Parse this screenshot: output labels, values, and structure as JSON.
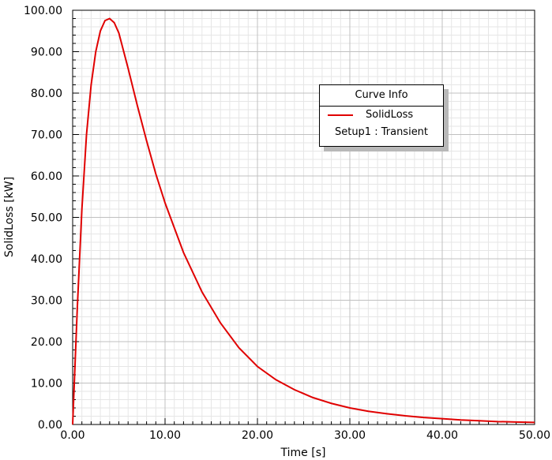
{
  "chart_data": {
    "type": "line",
    "xlabel": "Time [s]",
    "ylabel": "SolidLoss [kW]",
    "xlim": [
      0,
      50
    ],
    "ylim": [
      0,
      100
    ],
    "x_major_ticks": [
      "0.00",
      "10.00",
      "20.00",
      "30.00",
      "40.00",
      "50.00"
    ],
    "y_major_ticks": [
      "0.00",
      "10.00",
      "20.00",
      "30.00",
      "40.00",
      "50.00",
      "60.00",
      "70.00",
      "80.00",
      "90.00",
      "100.00"
    ],
    "grid": true,
    "legend": {
      "title": "Curve Info",
      "position": "top-right",
      "entries": [
        {
          "name": "SolidLoss",
          "source": "Setup1 : Transient"
        }
      ]
    },
    "series": [
      {
        "name": "SolidLoss",
        "color": "#e00000",
        "x": [
          0,
          0.5,
          1,
          1.5,
          2,
          2.5,
          3,
          3.5,
          4,
          4.5,
          5,
          6,
          7,
          8,
          9,
          10,
          12,
          14,
          16,
          18,
          20,
          22,
          24,
          26,
          28,
          30,
          32,
          34,
          36,
          38,
          40,
          42,
          44,
          46,
          48,
          50
        ],
        "y": [
          0,
          28,
          52,
          70,
          82,
          90,
          95,
          97.5,
          98,
          97,
          94.5,
          86,
          77,
          68.5,
          60.5,
          53.5,
          41.5,
          32,
          24.5,
          18.5,
          14,
          10.8,
          8.4,
          6.5,
          5.1,
          4.0,
          3.2,
          2.6,
          2.1,
          1.7,
          1.4,
          1.1,
          0.9,
          0.7,
          0.6,
          0.5
        ]
      }
    ]
  }
}
